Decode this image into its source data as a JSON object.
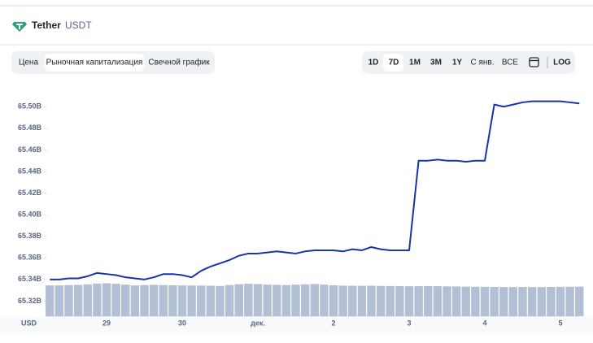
{
  "header": {
    "title": "Tether",
    "symbol": "USDT"
  },
  "tabs": [
    "Цена",
    "Рыночная капитализация",
    "Свечной график"
  ],
  "ranges": [
    "1D",
    "7D",
    "1M",
    "3M",
    "1Y",
    "С янв.",
    "ВСЕ"
  ],
  "log": "LOG",
  "chart_data": {
    "type": "line",
    "currency": "USD",
    "categories": [
      null,
      null,
      null,
      null,
      null,
      null,
      "29",
      null,
      null,
      null,
      null,
      null,
      null,
      null,
      "30",
      null,
      null,
      null,
      null,
      null,
      null,
      null,
      "дек.",
      null,
      null,
      null,
      null,
      null,
      null,
      null,
      "2",
      null,
      null,
      null,
      null,
      null,
      null,
      null,
      "3",
      null,
      null,
      null,
      null,
      null,
      null,
      null,
      "4",
      null,
      null,
      null,
      null,
      null,
      null,
      null,
      "5",
      null,
      null
    ],
    "series": [
      {
        "color": "#1735a6",
        "values": [
          65.34,
          65.34,
          65.341,
          65.341,
          65.343,
          65.346,
          65.345,
          65.344,
          65.342,
          65.341,
          65.34,
          65.342,
          65.345,
          65.345,
          65.344,
          65.342,
          65.348,
          65.352,
          65.355,
          65.358,
          65.362,
          65.364,
          65.364,
          65.365,
          65.366,
          65.365,
          65.364,
          65.366,
          65.367,
          65.367,
          65.367,
          65.366,
          65.368,
          65.367,
          65.37,
          65.368,
          65.367,
          65.367,
          65.367,
          65.45,
          65.45,
          65.451,
          65.45,
          65.45,
          65.449,
          65.45,
          65.45,
          65.502,
          65.5,
          65.502,
          65.504,
          65.505,
          65.505,
          65.505,
          65.505,
          65.504,
          65.503
        ]
      }
    ],
    "volume": {
      "color": "#b3bfd4",
      "values": [
        65.3345,
        65.3345,
        65.3348,
        65.335,
        65.3355,
        65.3362,
        65.3365,
        65.336,
        65.3352,
        65.3345,
        65.3348,
        65.335,
        65.3348,
        65.3346,
        65.3345,
        65.3344,
        65.3343,
        65.3342,
        65.334,
        65.3348,
        65.3356,
        65.336,
        65.3358,
        65.3352,
        65.335,
        65.3348,
        65.3352,
        65.3355,
        65.3358,
        65.3352,
        65.3346,
        65.3343,
        65.3342,
        65.3341,
        65.3342,
        65.334,
        65.3339,
        65.3338,
        65.3337,
        65.3338,
        65.3339,
        65.3338,
        65.3336,
        65.3335,
        65.3334,
        65.3333,
        65.3332,
        65.3331,
        65.333,
        65.333,
        65.3331,
        65.333,
        65.333,
        65.3331,
        65.3332,
        65.3333,
        65.3334
      ]
    },
    "ylim": [
      65.306,
      65.516
    ],
    "yticks": [
      {
        "value": 65.32,
        "label": "65.32B"
      },
      {
        "value": 65.34,
        "label": "65.34B"
      },
      {
        "value": 65.36,
        "label": "65.36B"
      },
      {
        "value": 65.38,
        "label": "65.38B"
      },
      {
        "value": 65.4,
        "label": "65.40B"
      },
      {
        "value": 65.42,
        "label": "65.42B"
      },
      {
        "value": 65.44,
        "label": "65.44B"
      },
      {
        "value": 65.46,
        "label": "65.46B"
      },
      {
        "value": 65.48,
        "label": "65.48B"
      },
      {
        "value": 65.5,
        "label": "65.50B"
      }
    ]
  }
}
